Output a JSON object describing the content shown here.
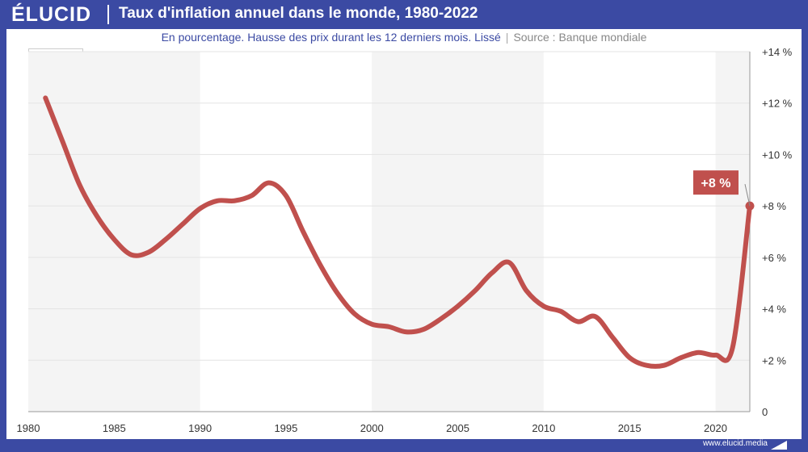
{
  "brand": {
    "logo_text": "ÉLUCID",
    "accent": "#3b4aa3",
    "line_color": "#c0504d"
  },
  "header": {
    "title": "Taux d'inflation annuel dans le monde, 1980-2022"
  },
  "subtitle": {
    "text": "En pourcentage. Hausse des prix durant les 12 derniers mois. Lissé",
    "separator": "|",
    "source": "Source : Banque mondiale"
  },
  "icons": {
    "map": "world-map-icon"
  },
  "footer": {
    "url": "www.elucid.media"
  },
  "chart_data": {
    "type": "line",
    "title": "Taux d'inflation annuel dans le monde, 1980-2022",
    "xlim": [
      1980,
      2022
    ],
    "ylim": [
      0,
      14
    ],
    "x_ticks": [
      "1980",
      "1985",
      "1990",
      "1995",
      "2000",
      "2005",
      "2010",
      "2015",
      "2020"
    ],
    "y_ticks": [
      "+14 %",
      "+12 %",
      "+10 %",
      "+8 %",
      "+6 %",
      "+4 %",
      "+2 %",
      "0"
    ],
    "grid": true,
    "shaded_bands": [
      [
        1980,
        1990
      ],
      [
        2000,
        2010
      ],
      [
        2020,
        2022
      ]
    ],
    "series": [
      {
        "x": [
          1981,
          1982,
          1983,
          1984,
          1985,
          1986,
          1987,
          1988,
          1989,
          1990,
          1991,
          1992,
          1993,
          1994,
          1995,
          1996,
          1997,
          1998,
          1999,
          2000,
          2001,
          2002,
          2003,
          2004,
          2005,
          2006,
          2007,
          2008,
          2009,
          2010,
          2011,
          2012,
          2013,
          2014,
          2015,
          2016,
          2017,
          2018,
          2019,
          2020,
          2021,
          2022
        ],
        "values": [
          12.2,
          10.5,
          8.8,
          7.6,
          6.7,
          6.1,
          6.2,
          6.7,
          7.3,
          7.9,
          8.2,
          8.2,
          8.4,
          8.9,
          8.4,
          7.0,
          5.7,
          4.6,
          3.8,
          3.4,
          3.3,
          3.1,
          3.2,
          3.6,
          4.1,
          4.7,
          5.4,
          5.8,
          4.7,
          4.1,
          3.9,
          3.5,
          3.7,
          2.9,
          2.1,
          1.8,
          1.8,
          2.1,
          2.3,
          2.2,
          2.5,
          8.0
        ]
      }
    ],
    "annotation": {
      "label": "+8 %",
      "x": 2022,
      "y": 8.0
    }
  }
}
